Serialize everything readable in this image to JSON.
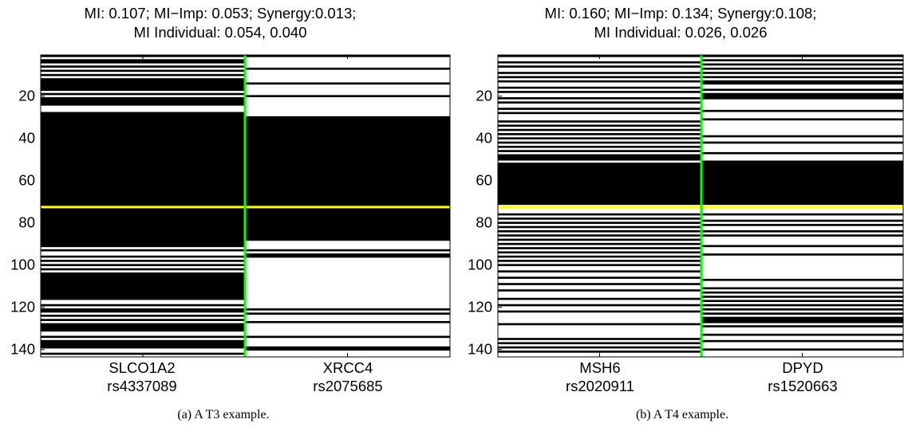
{
  "chart_data": [
    {
      "type": "heatmap",
      "title_line1": "MI: 0.107; MI−Imp: 0.053; Synergy:0.013;",
      "title_line2": "MI Individual: 0.054, 0.040",
      "yticks": [
        20,
        40,
        60,
        80,
        100,
        120,
        140
      ],
      "ylim": [
        1,
        143
      ],
      "columns": [
        {
          "gene": "SLCO1A2",
          "snp": "rs4337089"
        },
        {
          "gene": "XRCC4",
          "snp": "rs2075685"
        }
      ],
      "threshold_row": 72.5,
      "threshold_color": "#ffff00",
      "separator_color": "#00ff00",
      "col1_black_rows": [
        [
          1,
          1
        ],
        [
          3,
          4
        ],
        [
          6,
          6
        ],
        [
          8,
          8
        ],
        [
          10,
          10
        ],
        [
          12,
          17
        ],
        [
          19,
          19
        ],
        [
          21,
          24
        ],
        [
          28,
          91
        ],
        [
          93,
          93
        ],
        [
          96,
          96
        ],
        [
          98,
          98
        ],
        [
          100,
          100
        ],
        [
          102,
          102
        ],
        [
          104,
          116
        ],
        [
          119,
          119
        ],
        [
          121,
          122
        ],
        [
          124,
          124
        ],
        [
          126,
          126
        ],
        [
          128,
          131
        ],
        [
          134,
          134
        ],
        [
          136,
          139
        ],
        [
          142,
          142
        ]
      ],
      "col2_black_rows": [
        [
          1,
          1
        ],
        [
          7,
          7
        ],
        [
          14,
          14
        ],
        [
          20,
          20
        ],
        [
          30,
          88
        ],
        [
          93,
          93
        ],
        [
          95,
          96
        ],
        [
          121,
          121
        ],
        [
          123,
          123
        ],
        [
          127,
          127
        ],
        [
          134,
          134
        ],
        [
          139,
          140
        ]
      ],
      "caption": "(a)  A T3 example."
    },
    {
      "type": "heatmap",
      "title_line1": "MI: 0.160; MI−Imp: 0.134; Synergy:0.108;",
      "title_line2": "MI Individual: 0.026, 0.026",
      "yticks": [
        20,
        40,
        60,
        80,
        100,
        120,
        140
      ],
      "ylim": [
        1,
        143
      ],
      "columns": [
        {
          "gene": "MSH6",
          "snp": "rs2020911"
        },
        {
          "gene": "DPYD",
          "snp": "rs1520663"
        }
      ],
      "threshold_row": 72.5,
      "threshold_color": "#ffff00",
      "separator_color": "#00ff00",
      "col1_black_rows": [
        [
          1,
          1
        ],
        [
          4,
          4
        ],
        [
          6,
          6
        ],
        [
          9,
          9
        ],
        [
          11,
          11
        ],
        [
          13,
          13
        ],
        [
          16,
          16
        ],
        [
          18,
          18
        ],
        [
          21,
          21
        ],
        [
          23,
          23
        ],
        [
          26,
          26
        ],
        [
          28,
          28
        ],
        [
          32,
          32
        ],
        [
          34,
          34
        ],
        [
          36,
          36
        ],
        [
          38,
          38
        ],
        [
          40,
          40
        ],
        [
          42,
          42
        ],
        [
          44,
          44
        ],
        [
          46,
          46
        ],
        [
          48,
          50
        ],
        [
          52,
          71
        ],
        [
          76,
          76
        ],
        [
          78,
          78
        ],
        [
          80,
          80
        ],
        [
          82,
          82
        ],
        [
          84,
          84
        ],
        [
          86,
          86
        ],
        [
          88,
          88
        ],
        [
          90,
          90
        ],
        [
          92,
          92
        ],
        [
          94,
          94
        ],
        [
          96,
          96
        ],
        [
          98,
          98
        ],
        [
          100,
          100
        ],
        [
          103,
          103
        ],
        [
          106,
          106
        ],
        [
          109,
          109
        ],
        [
          112,
          112
        ],
        [
          116,
          116
        ],
        [
          119,
          119
        ],
        [
          122,
          122
        ],
        [
          128,
          128
        ],
        [
          135,
          135
        ],
        [
          137,
          137
        ],
        [
          139,
          139
        ],
        [
          141,
          141
        ]
      ],
      "col2_black_rows": [
        [
          1,
          1
        ],
        [
          3,
          3
        ],
        [
          5,
          5
        ],
        [
          7,
          7
        ],
        [
          9,
          9
        ],
        [
          11,
          11
        ],
        [
          13,
          14
        ],
        [
          17,
          17
        ],
        [
          19,
          21
        ],
        [
          27,
          27
        ],
        [
          31,
          31
        ],
        [
          39,
          39
        ],
        [
          42,
          42
        ],
        [
          47,
          47
        ],
        [
          51,
          71
        ],
        [
          76,
          76
        ],
        [
          79,
          79
        ],
        [
          81,
          81
        ],
        [
          84,
          84
        ],
        [
          86,
          86
        ],
        [
          91,
          91
        ],
        [
          95,
          95
        ],
        [
          107,
          107
        ],
        [
          111,
          111
        ],
        [
          113,
          113
        ],
        [
          115,
          115
        ],
        [
          117,
          117
        ],
        [
          119,
          119
        ],
        [
          121,
          121
        ],
        [
          123,
          123
        ],
        [
          125,
          127
        ],
        [
          129,
          129
        ],
        [
          133,
          133
        ],
        [
          136,
          136
        ],
        [
          140,
          140
        ]
      ],
      "caption": "(b)  A T4 example."
    }
  ]
}
